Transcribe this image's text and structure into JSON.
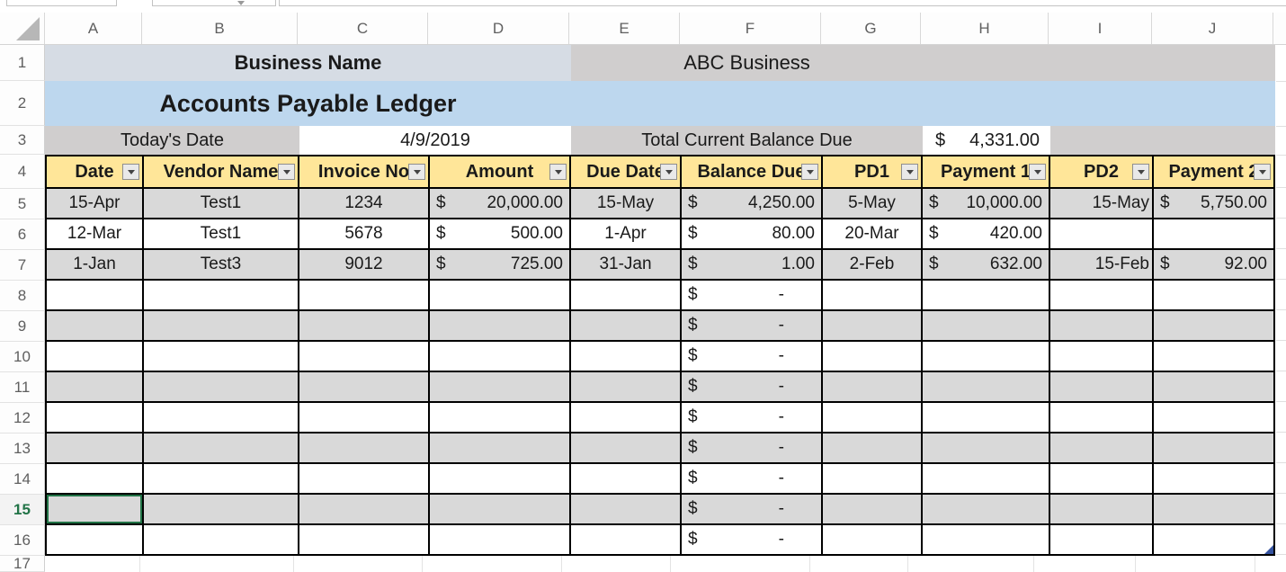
{
  "chrome": {
    "dropdown_icon": "chevron-down"
  },
  "grid": {
    "column_letters": [
      "A",
      "B",
      "C",
      "D",
      "E",
      "F",
      "G",
      "H",
      "I",
      "J"
    ],
    "row_numbers": [
      1,
      2,
      3,
      4,
      5,
      6,
      7,
      8,
      9,
      10,
      11,
      12,
      13,
      14,
      15,
      16,
      17
    ],
    "selected_row": 15
  },
  "banner": {
    "business_name_label": "Business Name",
    "business_name_value": "ABC Business",
    "title": "Accounts Payable Ledger",
    "todays_date_label": "Today's Date",
    "todays_date_value": "4/9/2019",
    "total_due_label": "Total Current Balance Due",
    "total_due_currency": "$",
    "total_due_value": "4,331.00"
  },
  "table": {
    "headers": [
      "Date",
      "Vendor Name",
      "Invoice No",
      "Amount",
      "Due Date",
      "Balance Due",
      "PD1",
      "Payment 1",
      "PD2",
      "Payment 2"
    ],
    "column_types": [
      "center",
      "center",
      "center",
      "accounting",
      "center",
      "accounting",
      "center",
      "accounting",
      "right",
      "accounting"
    ],
    "rows": [
      {
        "n": 5,
        "shade": true,
        "cells": [
          "15-Apr",
          "Test1",
          "1234",
          {
            "c": "$",
            "v": "20,000.00"
          },
          "15-May",
          {
            "c": "$",
            "v": "4,250.00"
          },
          "5-May",
          {
            "c": "$",
            "v": "10,000.00"
          },
          "15-May",
          {
            "c": "$",
            "v": "5,750.00"
          }
        ]
      },
      {
        "n": 6,
        "shade": false,
        "cells": [
          "12-Mar",
          "Test1",
          "5678",
          {
            "c": "$",
            "v": "500.00"
          },
          "1-Apr",
          {
            "c": "$",
            "v": "80.00"
          },
          "20-Mar",
          {
            "c": "$",
            "v": "420.00"
          },
          "",
          ""
        ]
      },
      {
        "n": 7,
        "shade": true,
        "cells": [
          "1-Jan",
          "Test3",
          "9012",
          {
            "c": "$",
            "v": "725.00"
          },
          "31-Jan",
          {
            "c": "$",
            "v": "1.00"
          },
          "2-Feb",
          {
            "c": "$",
            "v": "632.00"
          },
          "15-Feb",
          {
            "c": "$",
            "v": "92.00"
          }
        ]
      },
      {
        "n": 8,
        "shade": false,
        "cells": [
          "",
          "",
          "",
          "",
          "",
          {
            "c": "$",
            "v": "-"
          },
          "",
          "",
          "",
          ""
        ]
      },
      {
        "n": 9,
        "shade": true,
        "cells": [
          "",
          "",
          "",
          "",
          "",
          {
            "c": "$",
            "v": "-"
          },
          "",
          "",
          "",
          ""
        ]
      },
      {
        "n": 10,
        "shade": false,
        "cells": [
          "",
          "",
          "",
          "",
          "",
          {
            "c": "$",
            "v": "-"
          },
          "",
          "",
          "",
          ""
        ]
      },
      {
        "n": 11,
        "shade": true,
        "cells": [
          "",
          "",
          "",
          "",
          "",
          {
            "c": "$",
            "v": "-"
          },
          "",
          "",
          "",
          ""
        ]
      },
      {
        "n": 12,
        "shade": false,
        "cells": [
          "",
          "",
          "",
          "",
          "",
          {
            "c": "$",
            "v": "-"
          },
          "",
          "",
          "",
          ""
        ]
      },
      {
        "n": 13,
        "shade": true,
        "cells": [
          "",
          "",
          "",
          "",
          "",
          {
            "c": "$",
            "v": "-"
          },
          "",
          "",
          "",
          ""
        ]
      },
      {
        "n": 14,
        "shade": false,
        "cells": [
          "",
          "",
          "",
          "",
          "",
          {
            "c": "$",
            "v": "-"
          },
          "",
          "",
          "",
          ""
        ]
      },
      {
        "n": 15,
        "shade": true,
        "cells": [
          "",
          "",
          "",
          "",
          "",
          {
            "c": "$",
            "v": "-"
          },
          "",
          "",
          "",
          ""
        ]
      },
      {
        "n": 16,
        "shade": false,
        "cells": [
          "",
          "",
          "",
          "",
          "",
          {
            "c": "$",
            "v": "-"
          },
          "",
          "",
          "",
          ""
        ]
      }
    ]
  },
  "colors": {
    "banner_bluegray": "#d6dce4",
    "banner_gray": "#d0cece",
    "banner_blue": "#bdd7ee",
    "header_gold": "#ffe699",
    "stripe_gray": "#d9d9d9",
    "selection_green": "#217346",
    "handle_blue": "#3553a0"
  }
}
